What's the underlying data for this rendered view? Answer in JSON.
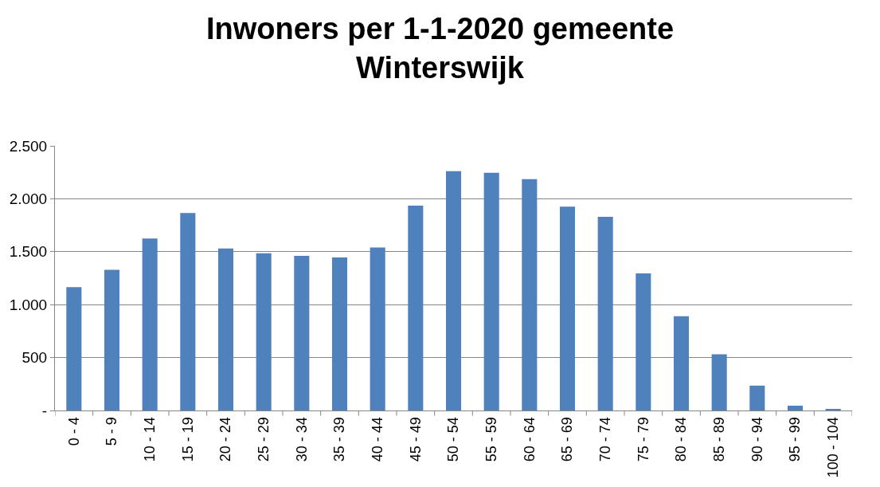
{
  "chart_data": {
    "type": "bar",
    "title": "Inwoners per 1-1-2020 gemeente\nWinterswijk",
    "categories": [
      "0 - 4",
      "5 - 9",
      "10 - 14",
      "15 - 19",
      "20 - 24",
      "25 - 29",
      "30 - 34",
      "35 - 39",
      "40 - 44",
      "45 - 49",
      "50 - 54",
      "55 - 59",
      "60 - 64",
      "65 - 69",
      "70 - 74",
      "75 - 79",
      "80 - 84",
      "85 - 89",
      "90 - 94",
      "95 - 99",
      "100 - 104"
    ],
    "values": [
      1165,
      1330,
      1625,
      1865,
      1530,
      1485,
      1460,
      1445,
      1540,
      1935,
      2260,
      2245,
      2185,
      1925,
      1830,
      1295,
      890,
      530,
      235,
      45,
      12
    ],
    "color": "#4f81bd",
    "ylim": [
      0,
      2500
    ],
    "yticks": [
      {
        "value": 0,
        "label": "-"
      },
      {
        "value": 500,
        "label": "500"
      },
      {
        "value": 1000,
        "label": "1.000"
      },
      {
        "value": 1500,
        "label": "1.500"
      },
      {
        "value": 2000,
        "label": "2.000"
      },
      {
        "value": 2500,
        "label": "2.500"
      }
    ],
    "grid": "y",
    "legend": false
  }
}
